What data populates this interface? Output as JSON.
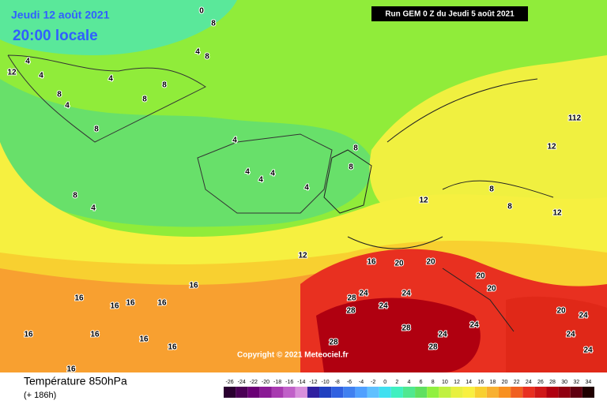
{
  "header": {
    "date": "Jeudi 12 août 2021",
    "time": "20:00 locale",
    "run": "Run GEM 0 Z du Jeudi 5 août 2021"
  },
  "map": {
    "copyright": "Copyright © 2021 Meteociel.fr",
    "contour_labels": [
      0,
      8,
      4,
      4,
      4,
      8,
      4,
      8,
      8,
      4,
      8,
      8,
      4,
      4,
      4,
      4,
      4,
      8,
      4,
      8,
      8,
      12,
      12,
      8,
      8,
      12,
      112,
      12,
      16,
      20,
      20,
      20,
      20,
      12,
      16,
      16,
      16,
      16,
      16,
      16,
      16,
      16,
      16,
      16,
      28,
      24,
      24,
      28,
      24,
      28,
      24,
      28,
      28,
      24,
      20,
      24,
      24,
      24
    ]
  },
  "footer": {
    "title": "Température 850hPa",
    "subtitle": "(+ 186h)"
  },
  "legend": {
    "ticks": [
      -26,
      -24,
      -22,
      -20,
      -18,
      -16,
      -14,
      -12,
      -10,
      -8,
      -6,
      -4,
      -2,
      0,
      2,
      4,
      6,
      8,
      10,
      12,
      14,
      16,
      18,
      20,
      22,
      24,
      26,
      28,
      30,
      32,
      34
    ],
    "colors": [
      "#2a0030",
      "#4b0055",
      "#6a0075",
      "#8a1a95",
      "#a83ab0",
      "#c060c8",
      "#d890dc",
      "#3020a0",
      "#2040c0",
      "#3060e0",
      "#4080f0",
      "#50a0ff",
      "#60c0ff",
      "#40e0f0",
      "#40f0c0",
      "#50e890",
      "#60e060",
      "#90f040",
      "#c0f040",
      "#e8f040",
      "#f8f040",
      "#f8d030",
      "#f8b030",
      "#f89020",
      "#f06020",
      "#e83020",
      "#d01818",
      "#b00010",
      "#900010",
      "#600010",
      "#200000"
    ]
  }
}
